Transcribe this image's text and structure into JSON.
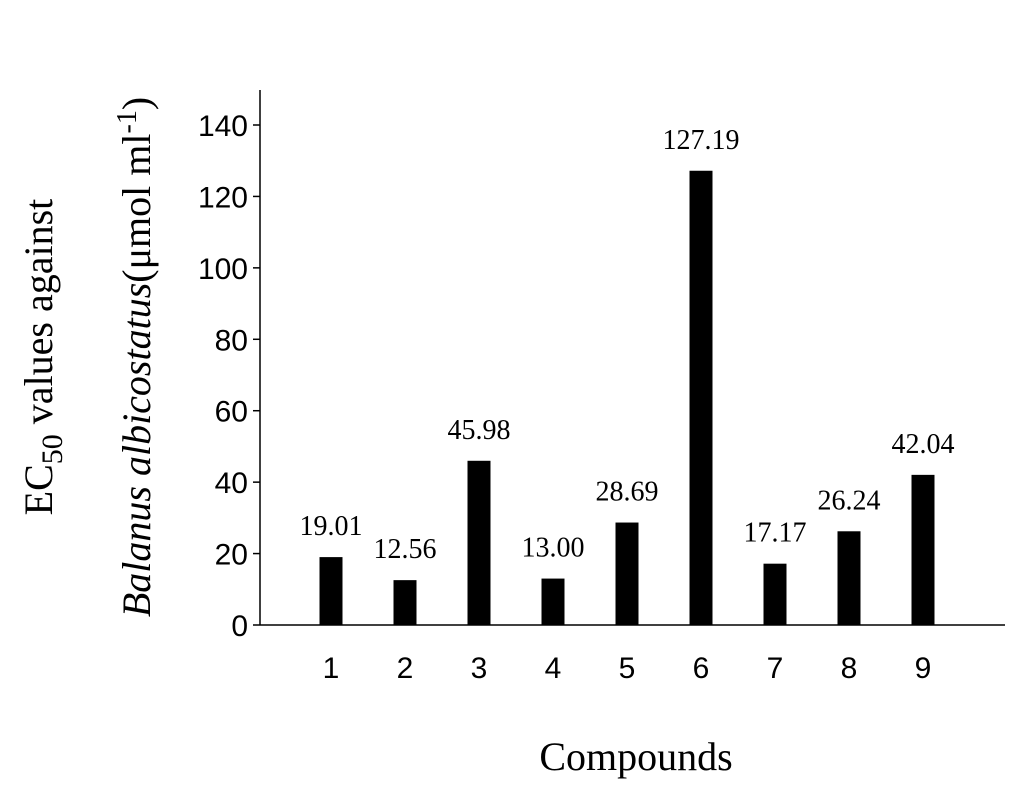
{
  "chart_data": {
    "type": "bar",
    "title": "",
    "categories": [
      "1",
      "2",
      "3",
      "4",
      "5",
      "6",
      "7",
      "8",
      "9"
    ],
    "values": [
      19.01,
      12.56,
      45.98,
      13.0,
      28.69,
      127.19,
      17.17,
      26.24,
      42.04
    ],
    "data_labels": [
      "19.01",
      "12.56",
      "45.98",
      "13.00",
      "28.69",
      "127.19",
      "17.17",
      "26.24",
      "42.04"
    ],
    "xlabel": "Compounds",
    "ylabel": {
      "line1_prefix": "EC",
      "line1_subscript": "50",
      "line1_suffix": " values against",
      "line2_italic": "Balanus albicostatus",
      "line2_unit": "(μmol ml",
      "line2_superscript": "-1",
      "line2_close": ")"
    },
    "yticks": [
      0,
      20,
      40,
      60,
      80,
      100,
      120,
      140
    ],
    "ylim": [
      0,
      150
    ],
    "grid": false,
    "legend": "none",
    "bar_color": "#000000"
  }
}
